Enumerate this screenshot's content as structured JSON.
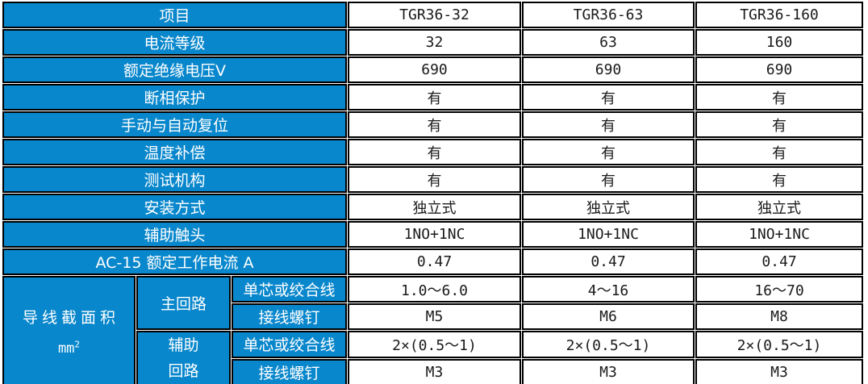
{
  "colors": {
    "header_bg": "#0987CC",
    "header_text": "#FFFFFF",
    "body_text": "#1A1A1A",
    "border": "#000000"
  },
  "table": {
    "corner_label": "项目",
    "model_columns": [
      "TGR36-32",
      "TGR36-63",
      "TGR36-160"
    ],
    "rows": [
      {
        "label": "电流等级",
        "values": [
          "32",
          "63",
          "160"
        ]
      },
      {
        "label": "额定绝缘电压V",
        "values": [
          "690",
          "690",
          "690"
        ]
      },
      {
        "label": "断相保护",
        "values": [
          "有",
          "有",
          "有"
        ]
      },
      {
        "label": "手动与自动复位",
        "values": [
          "有",
          "有",
          "有"
        ]
      },
      {
        "label": "温度补偿",
        "values": [
          "有",
          "有",
          "有"
        ]
      },
      {
        "label": "测试机构",
        "values": [
          "有",
          "有",
          "有"
        ]
      },
      {
        "label": "安装方式",
        "values": [
          "独立式",
          "独立式",
          "独立式"
        ]
      },
      {
        "label": "辅助触头",
        "values": [
          "1NO+1NC",
          "1NO+1NC",
          "1NO+1NC"
        ]
      },
      {
        "label": "AC-15 额定工作电流 A",
        "values": [
          "0.47",
          "0.47",
          "0.47"
        ]
      }
    ],
    "wire_group": {
      "label": "导线截面积",
      "unit": "mm",
      "unit_sup": "2",
      "main_circuit": {
        "label": "主回路",
        "rows": [
          {
            "label": "单芯或绞合线",
            "values": [
              "1.0～6.0",
              "4～16",
              "16～70"
            ]
          },
          {
            "label": "接线螺钉",
            "values": [
              "M5",
              "M6",
              "M8"
            ]
          }
        ]
      },
      "aux_circuit": {
        "label_line1": "辅助",
        "label_line2": "回路",
        "rows": [
          {
            "label": "单芯或绞合线",
            "values": [
              "2×(0.5～1)",
              "2×(0.5～1)",
              "2×(0.5～1)"
            ]
          },
          {
            "label": "接线螺钉",
            "values": [
              "M3",
              "M3",
              "M3"
            ]
          }
        ]
      }
    }
  }
}
